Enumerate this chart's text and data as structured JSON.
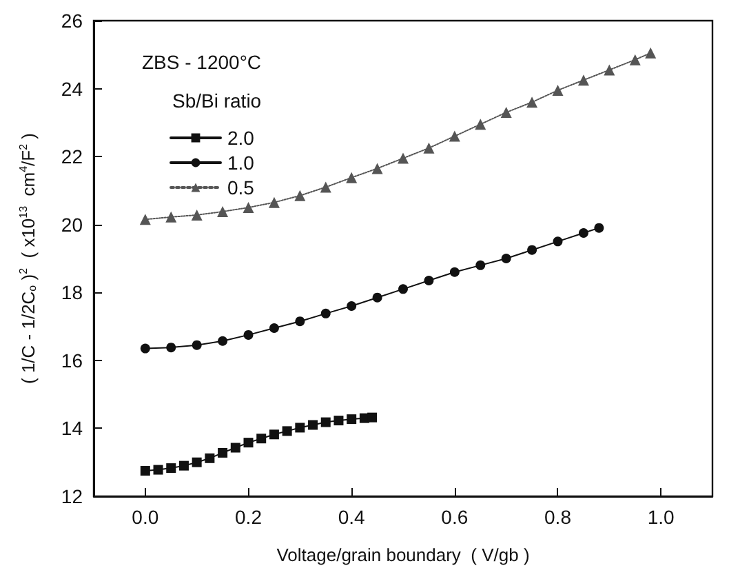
{
  "chart_data": {
    "type": "line",
    "xlabel": "Voltage/grain boundary  ( V/gb )",
    "ylabel": "( 1/C - 1/2C$_{o}$ )$^{2}$  ( x10$^{13}$  cm$^{4}$/F$^{2}$ )",
    "legend_title": "Sb/Bi ratio",
    "annotations": [
      "ZBS - 1200°C"
    ],
    "xlim": [
      -0.1,
      1.1
    ],
    "xticks": [
      {
        "value": 0,
        "label": "0.0"
      },
      {
        "value": 0.2,
        "label": "0.2"
      },
      {
        "value": 0.4,
        "label": "0.4"
      },
      {
        "value": 0.6,
        "label": "0.6"
      },
      {
        "value": 0.8,
        "label": "0.8"
      },
      {
        "value": 1,
        "label": "1.0"
      }
    ],
    "ylim": [
      12,
      26
    ],
    "yticks": [
      12,
      14,
      16,
      18,
      20,
      22,
      24,
      26
    ],
    "grid": false,
    "legend": "top left",
    "series": [
      {
        "name": "2.0",
        "color": "#111111",
        "marker": "square",
        "line_style": "solid",
        "x": [
          0,
          0.025,
          0.05,
          0.075,
          0.1,
          0.125,
          0.15,
          0.175,
          0.2,
          0.225,
          0.25,
          0.275,
          0.3,
          0.325,
          0.35,
          0.375,
          0.4,
          0.425,
          0.44
        ],
        "values": [
          12.75,
          12.78,
          12.83,
          12.9,
          13.0,
          13.12,
          13.28,
          13.43,
          13.58,
          13.7,
          13.82,
          13.92,
          14.02,
          14.1,
          14.18,
          14.23,
          14.27,
          14.3,
          14.32
        ]
      },
      {
        "name": "1.0",
        "color": "#111111",
        "marker": "circle",
        "line_style": "solid",
        "x": [
          0,
          0.05,
          0.1,
          0.15,
          0.2,
          0.25,
          0.3,
          0.35,
          0.4,
          0.45,
          0.5,
          0.55,
          0.6,
          0.65,
          0.7,
          0.75,
          0.8,
          0.85,
          0.88
        ],
        "values": [
          16.35,
          16.38,
          16.45,
          16.57,
          16.75,
          16.95,
          17.15,
          17.38,
          17.6,
          17.85,
          18.1,
          18.35,
          18.6,
          18.8,
          19.0,
          19.25,
          19.5,
          19.75,
          19.9
        ]
      },
      {
        "name": "0.5",
        "color": "#555555",
        "marker": "triangle",
        "line_style": "dotted",
        "x": [
          0,
          0.05,
          0.1,
          0.15,
          0.2,
          0.25,
          0.3,
          0.35,
          0.4,
          0.45,
          0.5,
          0.55,
          0.6,
          0.65,
          0.7,
          0.75,
          0.8,
          0.85,
          0.9,
          0.95,
          0.98
        ],
        "values": [
          20.15,
          20.22,
          20.28,
          20.38,
          20.5,
          20.65,
          20.85,
          21.1,
          21.38,
          21.65,
          21.95,
          22.25,
          22.6,
          22.95,
          23.3,
          23.6,
          23.95,
          24.25,
          24.55,
          24.85,
          25.05
        ]
      }
    ]
  }
}
